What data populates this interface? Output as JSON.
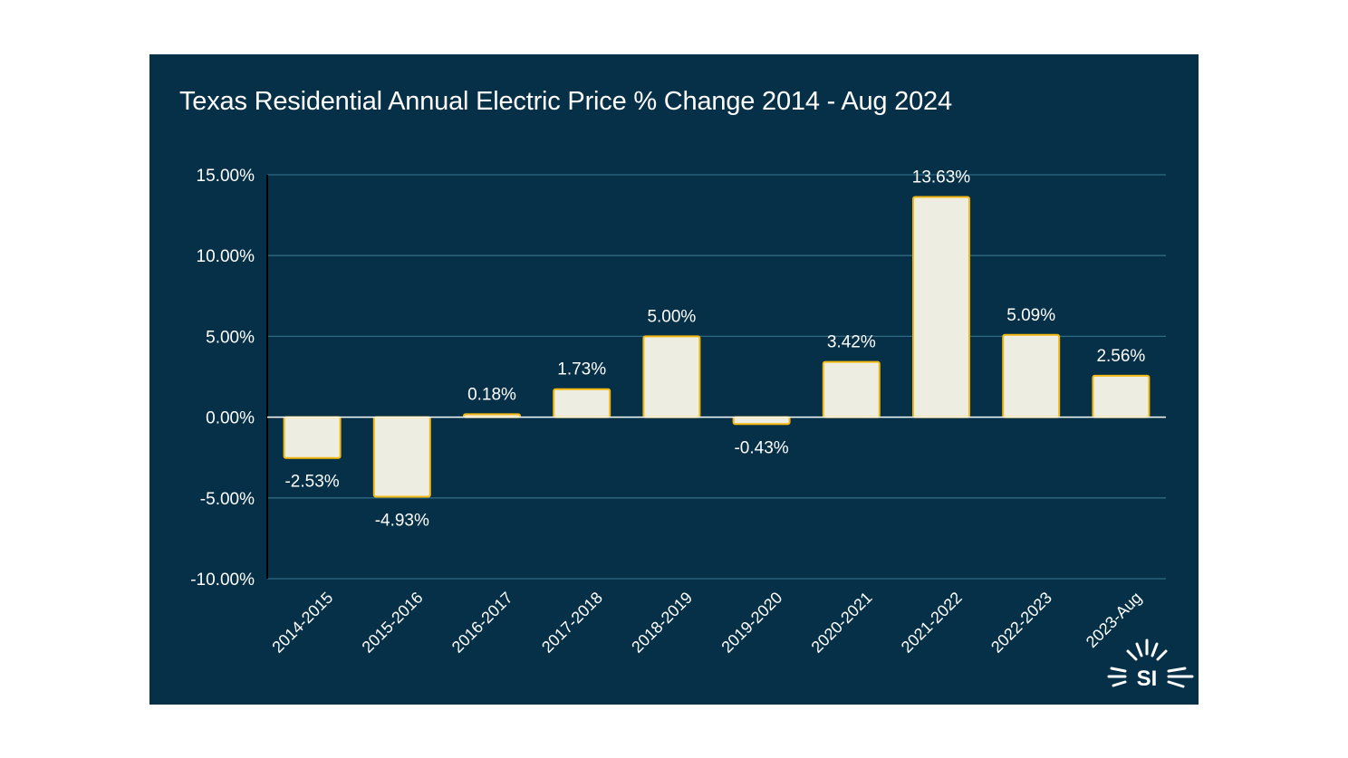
{
  "chart_data": {
    "type": "bar",
    "title": "Texas Residential Annual Electric Price % Change 2014 - Aug 2024",
    "xlabel": "",
    "ylabel": "",
    "categories": [
      "2014-2015",
      "2015-2016",
      "2016-2017",
      "2017-2018",
      "2018-2019",
      "2019-2020",
      "2020-2021",
      "2021-2022",
      "2022-2023",
      "2023-Aug"
    ],
    "values": [
      -2.53,
      -4.93,
      0.18,
      1.73,
      5.0,
      -0.43,
      3.42,
      13.63,
      5.09,
      2.56
    ],
    "data_labels": [
      "-2.53%",
      "-4.93%",
      "0.18%",
      "1.73%",
      "5.00%",
      "-0.43%",
      "3.42%",
      "13.63%",
      "5.09%",
      "2.56%"
    ],
    "ylim": [
      -10,
      15
    ],
    "yticks": [
      15,
      10,
      5,
      0,
      -5,
      -10
    ],
    "ytick_labels": [
      "15.00%",
      "10.00%",
      "5.00%",
      "0.00%",
      "-5.00%",
      "-10.00%"
    ],
    "grid": true,
    "legend": "none"
  },
  "logo": {
    "text": "SI"
  },
  "colors": {
    "background": "#063047",
    "bar_fill": "#eeede2",
    "bar_stroke": "#f2b70f",
    "gridline": "#2f6a82",
    "zero_line": "#ffffff",
    "text": "#ffffff"
  }
}
